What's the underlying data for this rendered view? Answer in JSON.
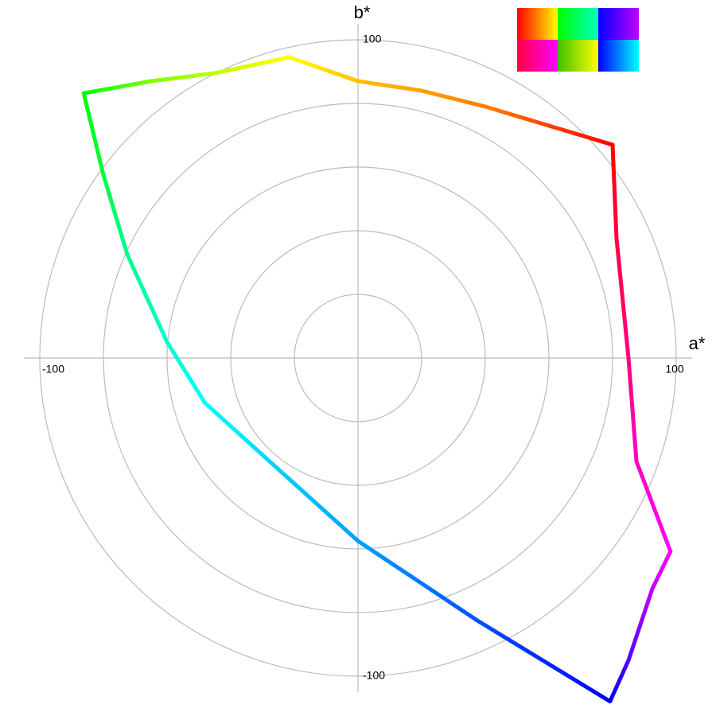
{
  "chart_data": {
    "type": "line",
    "x_label": "a*",
    "y_label": "b*",
    "xlim": [
      -105,
      105
    ],
    "ylim": [
      -105,
      105
    ],
    "xticks": [
      -100,
      100
    ],
    "yticks": [
      -100,
      100
    ],
    "rings": [
      20,
      40,
      60,
      80,
      100
    ],
    "series": [
      {
        "x": [
          80,
          60,
          40,
          20,
          0,
          -21.6,
          -45,
          -65,
          -86.2,
          -80,
          -72.5,
          -60,
          -48.1,
          -25,
          0,
          37.5,
          79.2,
          85,
          92.5,
          98.2,
          87.5,
          85,
          81.25,
          80
        ],
        "values": [
          67,
          73,
          79,
          84,
          87,
          94.5,
          89.5,
          87,
          83.2,
          57.5,
          32.5,
          5,
          -14.1,
          -35,
          -57.5,
          -82.5,
          -107.9,
          -95,
          -72.5,
          -60.8,
          -32.5,
          0,
          37.5,
          67
        ],
        "colors": [
          "#ff0000",
          "#ff4000",
          "#ff8000",
          "#ffa000",
          "#ffc000",
          "#ffff00",
          "#c0ff00",
          "#80ff00",
          "#00ff00",
          "#00ff40",
          "#00ff90",
          "#00ffd0",
          "#00ffff",
          "#00d0ff",
          "#00a0ff",
          "#0050ff",
          "#0000ff",
          "#5000ff",
          "#c000ff",
          "#ff00ff",
          "#ff00c0",
          "#ff0080",
          "#ff0040",
          "#ff0000"
        ]
      }
    ]
  }
}
